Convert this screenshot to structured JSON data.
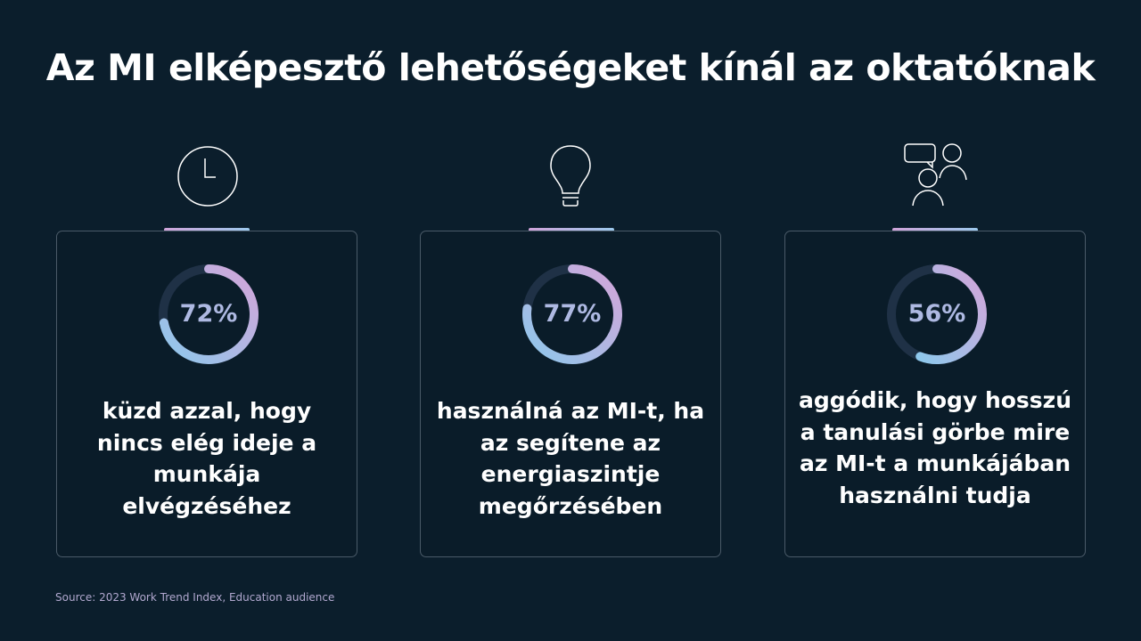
{
  "title": "Az MI elképesztő lehetőségeket kínál az oktatóknak",
  "colors": {
    "background": "#0b1e2c",
    "ring_track": "#1f3146",
    "ring_gradient_start": "#8ec8ec",
    "ring_gradient_end": "#d4a5d9",
    "percent_text": "#aeb9e2"
  },
  "cards": [
    {
      "icon": "clock-icon",
      "percent_value": 72,
      "percent_label": "72%",
      "description": "küzd azzal, hogy nincs elég ideje a munkája elvégzéséhez"
    },
    {
      "icon": "lightbulb-icon",
      "percent_value": 77,
      "percent_label": "77%",
      "description": "használná az MI-t, ha az segítene az energiaszintje megőrzésében"
    },
    {
      "icon": "people-chat-icon",
      "percent_value": 56,
      "percent_label": "56%",
      "description": "aggódik, hogy hosszú a tanulási görbe mire az MI-t a munkájában használni tudja"
    }
  ],
  "source": "Source: 2023 Work Trend Index, Education audience"
}
